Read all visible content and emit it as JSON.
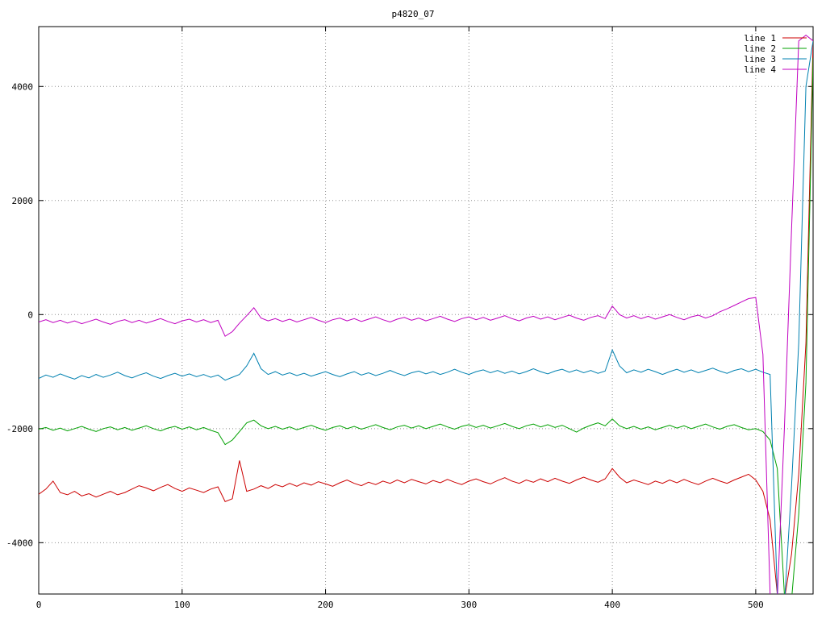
{
  "title": "p4820_07",
  "chart_data": {
    "type": "line",
    "title": "p4820_07",
    "xlabel": "",
    "ylabel": "",
    "xlim": [
      0,
      540
    ],
    "ylim": [
      -4900,
      5050
    ],
    "x_ticks": [
      0,
      100,
      200,
      300,
      400,
      500
    ],
    "y_ticks": [
      -4000,
      -2000,
      0,
      2000,
      4000
    ],
    "grid": "dotted",
    "legend_position": "top-right",
    "x_start": 0,
    "x_step": 5,
    "series": [
      {
        "name": "line 1",
        "color": "#cc0000",
        "values": [
          -3150,
          -3060,
          -2920,
          -3120,
          -3160,
          -3100,
          -3180,
          -3140,
          -3200,
          -3150,
          -3100,
          -3160,
          -3120,
          -3060,
          -3000,
          -3040,
          -3090,
          -3030,
          -2980,
          -3050,
          -3100,
          -3040,
          -3080,
          -3120,
          -3060,
          -3020,
          -3280,
          -3230,
          -2560,
          -3100,
          -3060,
          -3000,
          -3050,
          -2980,
          -3020,
          -2960,
          -3010,
          -2950,
          -2990,
          -2930,
          -2970,
          -3010,
          -2950,
          -2900,
          -2960,
          -3000,
          -2940,
          -2980,
          -2920,
          -2960,
          -2900,
          -2950,
          -2890,
          -2930,
          -2970,
          -2910,
          -2950,
          -2890,
          -2940,
          -2980,
          -2920,
          -2880,
          -2930,
          -2970,
          -2910,
          -2860,
          -2920,
          -2960,
          -2900,
          -2940,
          -2880,
          -2930,
          -2870,
          -2920,
          -2960,
          -2900,
          -2850,
          -2900,
          -2940,
          -2880,
          -2700,
          -2850,
          -2950,
          -2900,
          -2940,
          -2980,
          -2920,
          -2960,
          -2900,
          -2950,
          -2890,
          -2940,
          -2980,
          -2920,
          -2870,
          -2920,
          -2960,
          -2900,
          -2850,
          -2800,
          -2900,
          -3100,
          -3600,
          -4900,
          -5000,
          -4200,
          -2800,
          -500,
          4800
        ]
      },
      {
        "name": "line 2",
        "color": "#00a000",
        "values": [
          -2010,
          -1980,
          -2030,
          -1990,
          -2040,
          -2000,
          -1960,
          -2010,
          -2050,
          -2000,
          -1970,
          -2020,
          -1980,
          -2030,
          -1990,
          -1950,
          -2000,
          -2040,
          -1990,
          -1960,
          -2010,
          -1970,
          -2020,
          -1980,
          -2030,
          -2070,
          -2280,
          -2200,
          -2050,
          -1900,
          -1850,
          -1950,
          -2000,
          -1960,
          -2010,
          -1970,
          -2020,
          -1980,
          -1940,
          -1990,
          -2030,
          -1980,
          -1950,
          -2000,
          -1960,
          -2010,
          -1970,
          -1930,
          -1980,
          -2020,
          -1970,
          -1940,
          -1990,
          -1950,
          -2000,
          -1960,
          -1920,
          -1970,
          -2010,
          -1960,
          -1930,
          -1980,
          -1940,
          -1990,
          -1950,
          -1910,
          -1960,
          -2000,
          -1950,
          -1920,
          -1970,
          -1930,
          -1980,
          -1940,
          -2000,
          -2060,
          -1990,
          -1940,
          -1900,
          -1950,
          -1830,
          -1950,
          -2000,
          -1960,
          -2010,
          -1970,
          -2020,
          -1980,
          -1940,
          -1990,
          -1950,
          -2000,
          -1960,
          -1920,
          -1970,
          -2010,
          -1960,
          -1930,
          -1980,
          -2020,
          -2000,
          -2050,
          -2200,
          -2700,
          -4900,
          -5000,
          -3500,
          -1200,
          4500
        ]
      },
      {
        "name": "line 3",
        "color": "#0080b0",
        "values": [
          -1120,
          -1060,
          -1100,
          -1040,
          -1090,
          -1130,
          -1070,
          -1110,
          -1050,
          -1100,
          -1060,
          -1010,
          -1070,
          -1110,
          -1060,
          -1020,
          -1080,
          -1120,
          -1070,
          -1030,
          -1080,
          -1040,
          -1090,
          -1050,
          -1100,
          -1060,
          -1150,
          -1100,
          -1050,
          -900,
          -680,
          -950,
          -1050,
          -1000,
          -1060,
          -1020,
          -1070,
          -1030,
          -1080,
          -1040,
          -1000,
          -1050,
          -1090,
          -1040,
          -1000,
          -1060,
          -1020,
          -1070,
          -1030,
          -980,
          -1030,
          -1070,
          -1020,
          -990,
          -1040,
          -1000,
          -1050,
          -1010,
          -960,
          -1010,
          -1050,
          -1000,
          -970,
          -1020,
          -980,
          -1030,
          -990,
          -1040,
          -1000,
          -950,
          -1000,
          -1040,
          -990,
          -960,
          -1010,
          -970,
          -1020,
          -980,
          -1030,
          -990,
          -620,
          -900,
          -1020,
          -970,
          -1010,
          -960,
          -1000,
          -1050,
          -1000,
          -960,
          -1010,
          -970,
          -1020,
          -980,
          -940,
          -990,
          -1030,
          -980,
          -950,
          -1000,
          -960,
          -1010,
          -1050,
          -4900,
          -5100,
          -3000,
          -500,
          4000,
          4800
        ]
      },
      {
        "name": "line 4",
        "color": "#c000c0",
        "values": [
          -130,
          -90,
          -140,
          -100,
          -150,
          -110,
          -160,
          -120,
          -80,
          -130,
          -170,
          -120,
          -90,
          -140,
          -100,
          -150,
          -110,
          -70,
          -120,
          -160,
          -110,
          -80,
          -130,
          -90,
          -140,
          -100,
          -380,
          -300,
          -150,
          -20,
          120,
          -60,
          -110,
          -70,
          -120,
          -80,
          -130,
          -90,
          -50,
          -100,
          -140,
          -90,
          -60,
          -110,
          -70,
          -120,
          -80,
          -40,
          -90,
          -130,
          -80,
          -50,
          -100,
          -60,
          -110,
          -70,
          -30,
          -80,
          -120,
          -70,
          -40,
          -90,
          -50,
          -100,
          -60,
          -20,
          -70,
          -110,
          -60,
          -30,
          -80,
          -40,
          -90,
          -50,
          -10,
          -60,
          -100,
          -50,
          -20,
          -70,
          150,
          0,
          -60,
          -20,
          -70,
          -30,
          -80,
          -40,
          0,
          -50,
          -90,
          -40,
          -10,
          -60,
          -20,
          50,
          100,
          160,
          220,
          280,
          300,
          -700,
          -4900,
          -5000,
          -2000,
          1500,
          4800,
          4900,
          4800
        ]
      }
    ]
  }
}
